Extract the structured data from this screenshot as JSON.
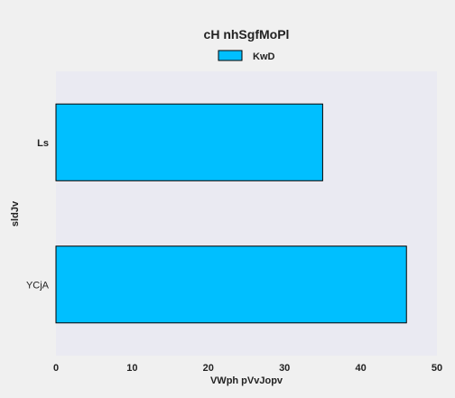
{
  "chart_data": {
    "type": "bar",
    "orientation": "horizontal",
    "title": "cH nhSgfMoPl",
    "xlabel": "VWph pVvJopv",
    "ylabel": "sldJv",
    "categories": [
      "YCjA",
      "Ls"
    ],
    "series": [
      {
        "name": "KwD",
        "values": [
          46,
          35
        ],
        "color": "#00bfff"
      }
    ],
    "xlim": [
      0,
      50
    ],
    "xticks": [
      "0",
      "10",
      "20",
      "30",
      "40",
      "50"
    ],
    "legend_position": "top-center",
    "grid": false,
    "plot_background": "#eaeaf2",
    "bar_edge_color": "#000000"
  }
}
